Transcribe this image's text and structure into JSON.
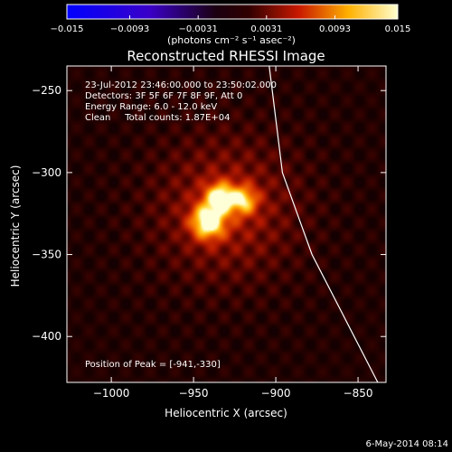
{
  "chart_data": {
    "type": "heatmap",
    "title": "Reconstructed RHESSI Image",
    "xlabel": "Heliocentric X (arcsec)",
    "ylabel": "Heliocentric Y (arcsec)",
    "xlim": [
      -1027,
      -833
    ],
    "ylim": [
      -428,
      -235
    ],
    "x_ticks": [
      -1000,
      -950,
      -900,
      -850
    ],
    "y_ticks": [
      -250,
      -300,
      -350,
      -400
    ],
    "x_tick_labels": [
      "−1000",
      "−950",
      "−900",
      "−850"
    ],
    "y_tick_labels": [
      "−250",
      "−300",
      "−350",
      "−400"
    ],
    "colorbar": {
      "range": [
        -0.015,
        0.015
      ],
      "ticks": [
        -0.015,
        -0.0093,
        -0.0031,
        0.0031,
        0.0093,
        0.015
      ],
      "tick_labels": [
        "−0.015",
        "−0.0093",
        "−0.0031",
        "0.0031",
        "0.0093",
        "0.015"
      ],
      "unit_label": "(photons cm⁻² s⁻¹ asec⁻²)"
    },
    "info_lines": [
      "23-Jul-2012 23:46:00.000 to 23:50:02.000",
      "Detectors: 3F 5F 6F 7F 8F 9F, Att 0",
      "Energy Range: 6.0 - 12.0 keV",
      "Clean     Total counts: 1.87E+04"
    ],
    "peak_label": "Position of Peak = [-941,-330]",
    "peak": [
      -941,
      -330
    ],
    "sources": [
      {
        "x": -941,
        "y": -330,
        "sigma": 7,
        "amp": 1.0
      },
      {
        "x": -934,
        "y": -315,
        "sigma": 6,
        "amp": 0.85
      },
      {
        "x": -920,
        "y": -317,
        "sigma": 6,
        "amp": 0.7
      }
    ],
    "limb_line": [
      [
        -904,
        -235
      ],
      [
        -896,
        -300
      ],
      [
        -878,
        -350
      ],
      [
        -838,
        -428
      ]
    ],
    "grid": false
  },
  "footer": {
    "timestamp": "6-May-2014 08:14"
  },
  "colors": {
    "background": "#000000",
    "text": "#ffffff",
    "limb": "#ffffff"
  }
}
